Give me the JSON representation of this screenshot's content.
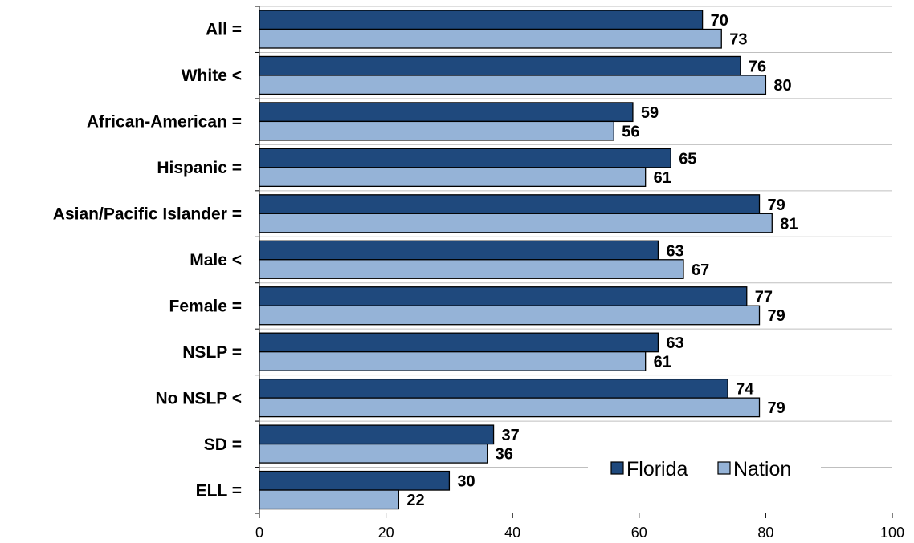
{
  "chart_data": {
    "type": "bar",
    "orientation": "horizontal",
    "categories": [
      "All =",
      "White <",
      "African-American =",
      "Hispanic =",
      "Asian/Pacific Islander =",
      "Male <",
      "Female =",
      "NSLP =",
      "No NSLP <",
      "SD =",
      "ELL ="
    ],
    "series": [
      {
        "name": "Florida",
        "values": [
          70,
          76,
          59,
          65,
          79,
          63,
          77,
          63,
          74,
          37,
          30
        ],
        "color": "#1f497d"
      },
      {
        "name": "Nation",
        "values": [
          73,
          80,
          56,
          61,
          81,
          67,
          79,
          61,
          79,
          36,
          22
        ],
        "color": "#95b3d7"
      }
    ],
    "xlim": [
      0,
      100
    ],
    "xticks": [
      "0",
      "20",
      "40",
      "60",
      "80",
      "100"
    ],
    "grid": true,
    "legend_position": "bottom-right"
  }
}
